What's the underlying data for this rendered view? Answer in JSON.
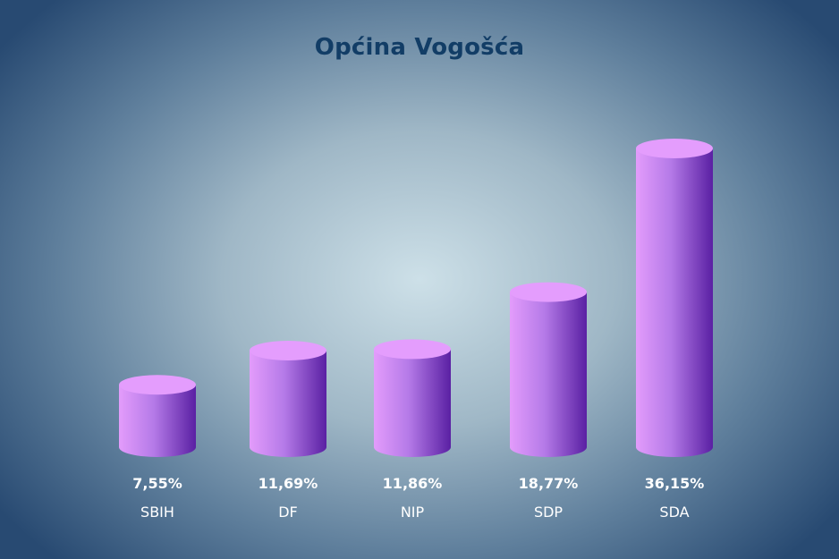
{
  "chart_data": {
    "type": "bar",
    "title": "Općina Vogošća",
    "categories": [
      "SBIH",
      "DF",
      "NIP",
      "SDP",
      "SDA"
    ],
    "values": [
      7.55,
      11.69,
      11.86,
      18.77,
      36.15
    ],
    "value_labels": [
      "7,55%",
      "11,69%",
      "11,86%",
      "18,77%",
      "36,15%"
    ],
    "xlabel": "",
    "ylabel": "",
    "grid": false,
    "colors": {
      "bar_light": "#e39cfb",
      "bar_mid": "#b57ae8",
      "bar_dark": "#5a20a3",
      "top": "#e49dfd",
      "title": "#123d66",
      "labels": "#ffffff"
    }
  }
}
